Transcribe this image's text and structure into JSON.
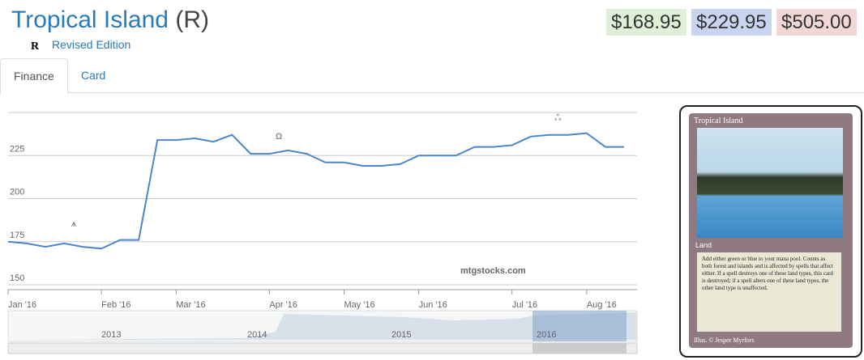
{
  "header": {
    "title": "Tropical Island",
    "rarity": "(R)",
    "set_symbol": "R",
    "set_name": "Revised Edition"
  },
  "prices": [
    "$168.95",
    "$229.95",
    "$505.00"
  ],
  "tabs": [
    "Finance",
    "Card"
  ],
  "chart_data": {
    "type": "line",
    "categories": [
      "Jan '16",
      null,
      null,
      null,
      null,
      "Feb '16",
      null,
      null,
      null,
      "Mar '16",
      null,
      null,
      null,
      null,
      "Apr '16",
      null,
      null,
      null,
      "May '16",
      null,
      null,
      null,
      "Jun '16",
      null,
      null,
      null,
      null,
      "Jul '16",
      null,
      null,
      null,
      "Aug '16",
      null,
      null
    ],
    "values": [
      175,
      174,
      172,
      174,
      172,
      171,
      176,
      176,
      234,
      234,
      235,
      233,
      237,
      226,
      226,
      228,
      226,
      221,
      221,
      219,
      219,
      220,
      225,
      225,
      225,
      230,
      230,
      231,
      236,
      237,
      237,
      238,
      230,
      230
    ],
    "color": "#4a86c8",
    "ylim": [
      150,
      250
    ],
    "yticks": [
      150,
      175,
      200,
      225
    ],
    "grid": true,
    "watermark": "mtgstocks.com",
    "navigator_labels": [
      "2013",
      "2014",
      "2015",
      "2016"
    ]
  },
  "card": {
    "name": "Tropical Island",
    "type_line": "Land",
    "rules": "Add either green or blue to your mana pool. Counts as both forest and islands and is affected by spells that affect either. If a spell destroys one of these land types, this card is destroyed; if a spell alters one of these land types, the other land type is unaffected.",
    "artist": "Illus. © Jesper Myrfors"
  }
}
